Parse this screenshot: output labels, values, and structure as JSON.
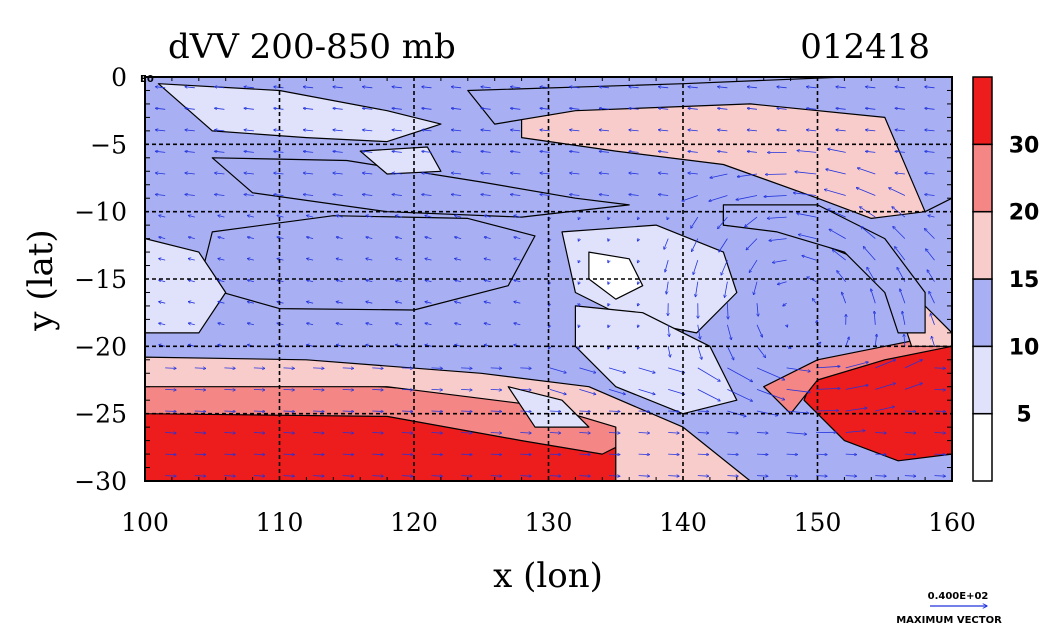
{
  "chart_data": {
    "type": "heatmap",
    "title": "dVV 200-850 mb",
    "date_label": "012418",
    "xlabel": "x (lon)",
    "ylabel": "y (lat)",
    "xlim": [
      100,
      160
    ],
    "ylim": [
      -30,
      0
    ],
    "x_ticks": [
      100,
      110,
      120,
      130,
      140,
      150,
      160
    ],
    "y_ticks": [
      0,
      -5,
      -10,
      -15,
      -20,
      -25,
      -30
    ],
    "x_tick_labels": [
      "100",
      "110",
      "120",
      "130",
      "140",
      "150",
      "160"
    ],
    "y_tick_labels": [
      "0",
      "−5",
      "−10",
      "−15",
      "−20",
      "−25",
      "−30"
    ],
    "grid": true,
    "colorbar": {
      "levels": [
        0,
        5,
        10,
        15,
        20,
        30,
        40
      ],
      "tick_values": [
        5,
        10,
        15,
        20,
        30
      ],
      "tick_labels": [
        "5",
        "10",
        "15",
        "20",
        "30"
      ],
      "colors": [
        "#ffffff",
        "#e0e2fb",
        "#a8b0f3",
        "#f9cccc",
        "#f48686",
        "#ee1d1d"
      ]
    },
    "vector_legend": {
      "magnitude_label": "0.400E+02",
      "label": "MAXIMUM VECTOR",
      "color": "#2233dd"
    },
    "corner_label": "E0",
    "regions": [
      {
        "name": "band-south-max",
        "value": 34,
        "poly": [
          [
            100,
            -24.5
          ],
          [
            118,
            -24.8
          ],
          [
            130,
            -25.5
          ],
          [
            135,
            -27
          ],
          [
            135,
            -30
          ],
          [
            100,
            -30
          ]
        ]
      },
      {
        "name": "band-south-strong",
        "value": 23,
        "poly": [
          [
            100,
            -22.5
          ],
          [
            115,
            -22.8
          ],
          [
            128,
            -23.8
          ],
          [
            134,
            -24.5
          ],
          [
            136,
            -27
          ],
          [
            134,
            -28
          ],
          [
            128,
            -27
          ],
          [
            118,
            -25.2
          ],
          [
            100,
            -25
          ]
        ]
      },
      {
        "name": "band-south-mod",
        "value": 17,
        "poly": [
          [
            100,
            -20.8
          ],
          [
            112,
            -21
          ],
          [
            125,
            -22
          ],
          [
            133,
            -23
          ],
          [
            140,
            -26
          ],
          [
            145,
            -30
          ],
          [
            135,
            -30
          ],
          [
            135,
            -26
          ],
          [
            130,
            -24.5
          ],
          [
            118,
            -23
          ],
          [
            100,
            -23
          ]
        ]
      },
      {
        "name": "southeast-max",
        "value": 34,
        "poly": [
          [
            150,
            -21.5
          ],
          [
            155,
            -20.5
          ],
          [
            160,
            -19.8
          ],
          [
            160,
            -28
          ],
          [
            156,
            -28.5
          ],
          [
            152,
            -27
          ],
          [
            149,
            -24
          ]
        ]
      },
      {
        "name": "southeast-strong",
        "value": 23,
        "poly": [
          [
            146,
            -23
          ],
          [
            150,
            -21
          ],
          [
            155,
            -20
          ],
          [
            160,
            -19
          ],
          [
            160,
            -20
          ],
          [
            155,
            -21
          ],
          [
            150,
            -22.5
          ],
          [
            148,
            -25
          ]
        ]
      },
      {
        "name": "east-arc-mod",
        "value": 17,
        "poly": [
          [
            143,
            -11
          ],
          [
            148,
            -11.5
          ],
          [
            153,
            -13.5
          ],
          [
            156,
            -17
          ],
          [
            157,
            -20
          ],
          [
            160,
            -20
          ],
          [
            160,
            -19
          ],
          [
            157,
            -16
          ],
          [
            153,
            -12
          ],
          [
            148,
            -10
          ],
          [
            143,
            -10
          ]
        ]
      },
      {
        "name": "east-arc-weak",
        "value": 13,
        "poly": [
          [
            143,
            -9.5
          ],
          [
            150,
            -9.5
          ],
          [
            155,
            -12
          ],
          [
            158,
            -16
          ],
          [
            158,
            -19
          ],
          [
            156,
            -19
          ],
          [
            155,
            -16
          ],
          [
            152,
            -13
          ],
          [
            147,
            -11.5
          ],
          [
            143,
            -11
          ]
        ]
      },
      {
        "name": "northeast-max",
        "value": 34,
        "poly": [
          [
            150,
            -5
          ],
          [
            154,
            -6
          ],
          [
            156,
            -9
          ],
          [
            154,
            -9.5
          ],
          [
            150,
            -7.5
          ]
        ]
      },
      {
        "name": "northeast-strong",
        "value": 23,
        "poly": [
          [
            142,
            -3.2
          ],
          [
            150,
            -3.5
          ],
          [
            155,
            -5
          ],
          [
            157,
            -9.5
          ],
          [
            154,
            -10
          ],
          [
            150,
            -8.5
          ],
          [
            145,
            -6
          ]
        ]
      },
      {
        "name": "north-mod",
        "value": 17,
        "poly": [
          [
            128,
            -2.5
          ],
          [
            140,
            -1.8
          ],
          [
            150,
            -2
          ],
          [
            156,
            -3
          ],
          [
            158,
            -10
          ],
          [
            154,
            -10.5
          ],
          [
            150,
            -9
          ],
          [
            143,
            -6.5
          ],
          [
            135,
            -5.5
          ],
          [
            128,
            -4.5
          ]
        ]
      },
      {
        "name": "north-weak-east",
        "value": 13,
        "poly": [
          [
            124,
            -1
          ],
          [
            140,
            -0.5
          ],
          [
            152,
            0
          ],
          [
            160,
            0
          ],
          [
            160,
            -9
          ],
          [
            158,
            -10
          ],
          [
            155,
            -3
          ],
          [
            145,
            -2
          ],
          [
            132,
            -2.5
          ],
          [
            126,
            -3.5
          ]
        ]
      },
      {
        "name": "central-jet-strong",
        "value": 23,
        "poly": [
          [
            111,
            -13
          ],
          [
            116,
            -12.8
          ],
          [
            120,
            -13.2
          ],
          [
            122,
            -14.3
          ],
          [
            119,
            -15.2
          ],
          [
            114,
            -15
          ],
          [
            111,
            -14.2
          ]
        ]
      },
      {
        "name": "central-jet-mod",
        "value": 17,
        "poly": [
          [
            108,
            -12.5
          ],
          [
            115,
            -11.5
          ],
          [
            122,
            -11.8
          ],
          [
            126,
            -13
          ],
          [
            124,
            -15.5
          ],
          [
            118,
            -16.3
          ],
          [
            111,
            -16
          ],
          [
            108,
            -14.5
          ]
        ]
      },
      {
        "name": "central-jet-weak",
        "value": 13,
        "poly": [
          [
            105,
            -11.5
          ],
          [
            114,
            -10.3
          ],
          [
            124,
            -10.5
          ],
          [
            129,
            -11.8
          ],
          [
            127,
            -15.5
          ],
          [
            120,
            -17.3
          ],
          [
            110,
            -17.2
          ],
          [
            104,
            -15.5
          ]
        ]
      },
      {
        "name": "upper-band-weak",
        "value": 13,
        "poly": [
          [
            105,
            -6
          ],
          [
            115,
            -6.2
          ],
          [
            125,
            -7.8
          ],
          [
            132,
            -9
          ],
          [
            136,
            -9.5
          ],
          [
            128,
            -10.4
          ],
          [
            118,
            -10
          ],
          [
            108,
            -8.6
          ]
        ]
      },
      {
        "name": "interior-low",
        "value": 8,
        "poly": [
          [
            131,
            -11.5
          ],
          [
            138,
            -11
          ],
          [
            143,
            -13
          ],
          [
            144,
            -16
          ],
          [
            141,
            -19
          ],
          [
            136,
            -18
          ],
          [
            132,
            -16
          ]
        ]
      },
      {
        "name": "interior-calm",
        "value": 2.5,
        "poly": [
          [
            133,
            -13
          ],
          [
            136,
            -13.5
          ],
          [
            137,
            -15.5
          ],
          [
            135,
            -16.5
          ],
          [
            133,
            -15
          ]
        ]
      },
      {
        "name": "interior-calm-2",
        "value": 2.5,
        "poly": [
          [
            133,
            -19
          ],
          [
            138,
            -19
          ],
          [
            140,
            -21.5
          ],
          [
            141,
            -24
          ],
          [
            137,
            -23
          ],
          [
            134,
            -21
          ]
        ]
      },
      {
        "name": "west-calm",
        "value": 8,
        "poly": [
          [
            100,
            -12
          ],
          [
            104,
            -13
          ],
          [
            106,
            -16
          ],
          [
            104,
            -19
          ],
          [
            100,
            -19
          ]
        ]
      },
      {
        "name": "northwest-calm",
        "value": 8,
        "poly": [
          [
            101,
            -0.5
          ],
          [
            110,
            -1
          ],
          [
            118,
            -2.5
          ],
          [
            122,
            -3.5
          ],
          [
            118,
            -4.8
          ],
          [
            112,
            -4.5
          ],
          [
            105,
            -4
          ]
        ]
      },
      {
        "name": "north-calm",
        "value": 8,
        "poly": [
          [
            116,
            -5.5
          ],
          [
            121,
            -5.2
          ],
          [
            122,
            -7
          ],
          [
            118,
            -7.2
          ]
        ]
      },
      {
        "name": "interior-low-2",
        "value": 8,
        "poly": [
          [
            132,
            -17
          ],
          [
            137,
            -17.5
          ],
          [
            142,
            -20
          ],
          [
            144,
            -24
          ],
          [
            140,
            -25
          ],
          [
            135,
            -23
          ],
          [
            132,
            -20
          ]
        ]
      },
      {
        "name": "south-central-calm",
        "value": 8,
        "poly": [
          [
            127,
            -23
          ],
          [
            131,
            -24
          ],
          [
            133,
            -26
          ],
          [
            129,
            -26
          ]
        ]
      }
    ]
  }
}
